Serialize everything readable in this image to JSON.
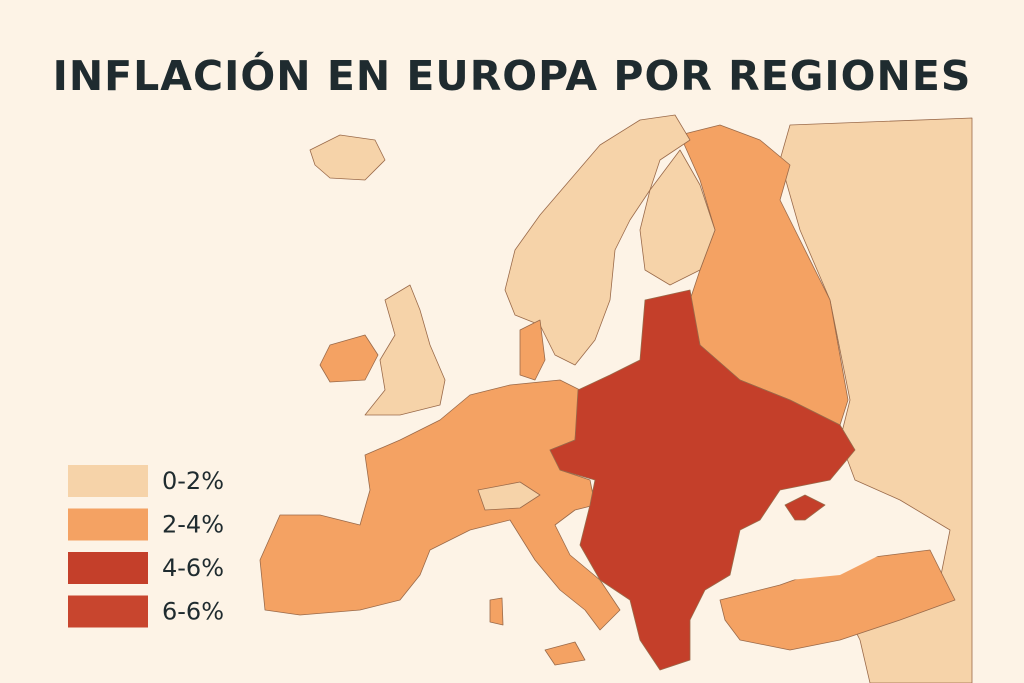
{
  "title": "INFLACIÓN EN EUROPA POR REGIONES",
  "legend": [
    {
      "label": "0-2%",
      "color": "#f6d3a9"
    },
    {
      "label": "2-4%",
      "color": "#f4a263"
    },
    {
      "label": "4-6%",
      "color": "#c43f2a"
    },
    {
      "label": "6-6%",
      "color": "#c8452e"
    }
  ]
}
